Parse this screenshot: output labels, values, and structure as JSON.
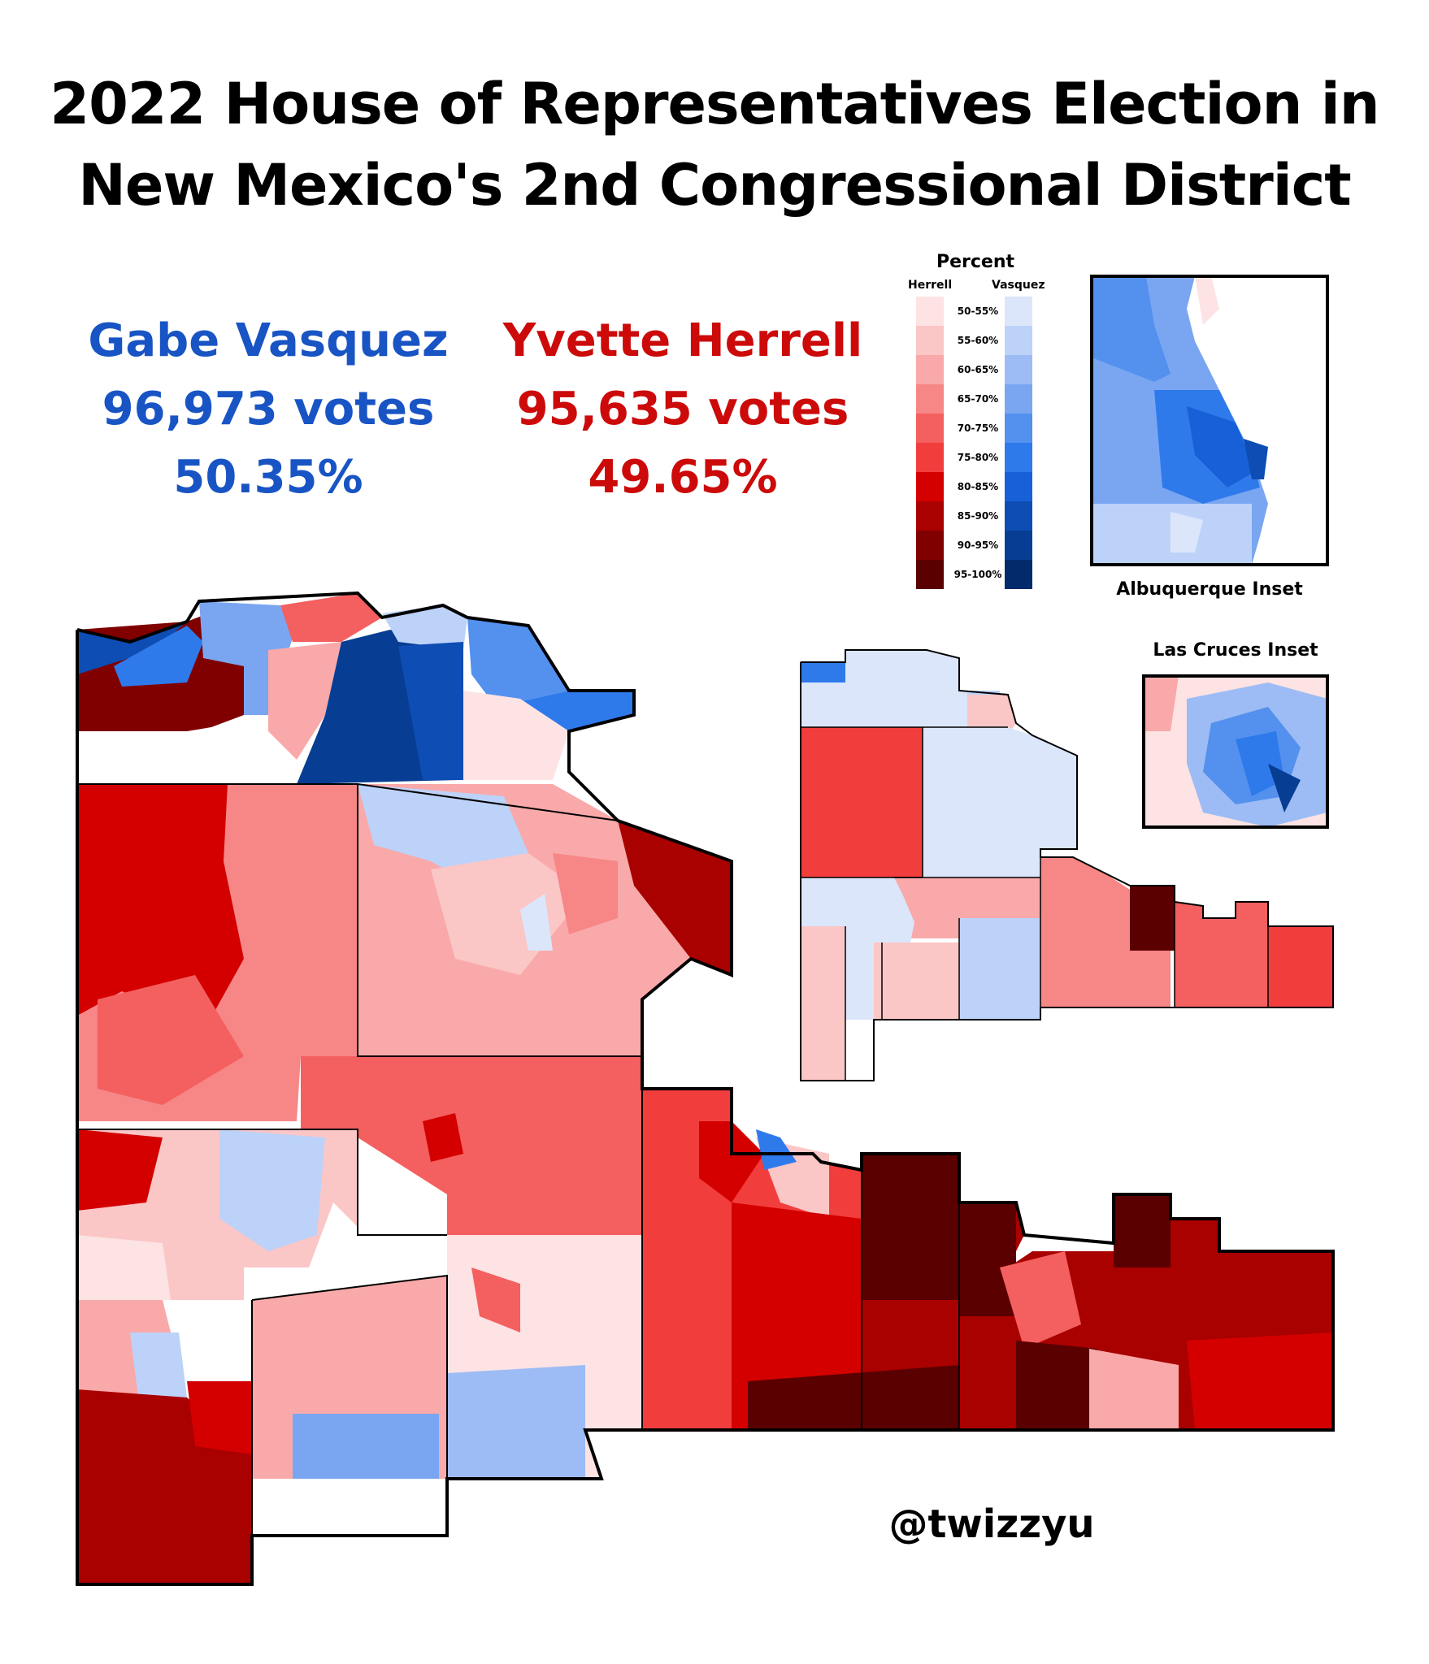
{
  "title_line1": "2022 House of Representatives Election in",
  "title_line2": "New Mexico's 2nd Congressional District",
  "candidates": {
    "dem": {
      "name": "Gabe Vasquez",
      "votes": "96,973 votes",
      "pct": "50.35%",
      "color": "#1854c4"
    },
    "rep": {
      "name": "Yvette Herrell",
      "votes": "95,635 votes",
      "pct": "49.65%",
      "color": "#cc0a0a"
    }
  },
  "legend": {
    "title": "Percent",
    "rep_label": "Herrell",
    "dem_label": "Vasquez",
    "bins": [
      "50-55%",
      "55-60%",
      "60-65%",
      "65-70%",
      "70-75%",
      "75-80%",
      "80-85%",
      "85-90%",
      "90-95%",
      "95-100%"
    ],
    "rep_colors": [
      "#fde3e3",
      "#fbc6c6",
      "#f9a9a9",
      "#f78686",
      "#f45f5f",
      "#f23d3d",
      "#d40000",
      "#a90000",
      "#800000",
      "#5a0000"
    ],
    "dem_colors": [
      "#dbe6fb",
      "#bdd2f8",
      "#9dbcf5",
      "#7aa6f1",
      "#5490ee",
      "#2f7aeb",
      "#1760d8",
      "#0d4db4",
      "#073d92",
      "#032a6b"
    ]
  },
  "insets": {
    "albuquerque": "Albuquerque Inset",
    "las_cruces": "Las Cruces Inset"
  },
  "credit": "@twizzyu"
}
